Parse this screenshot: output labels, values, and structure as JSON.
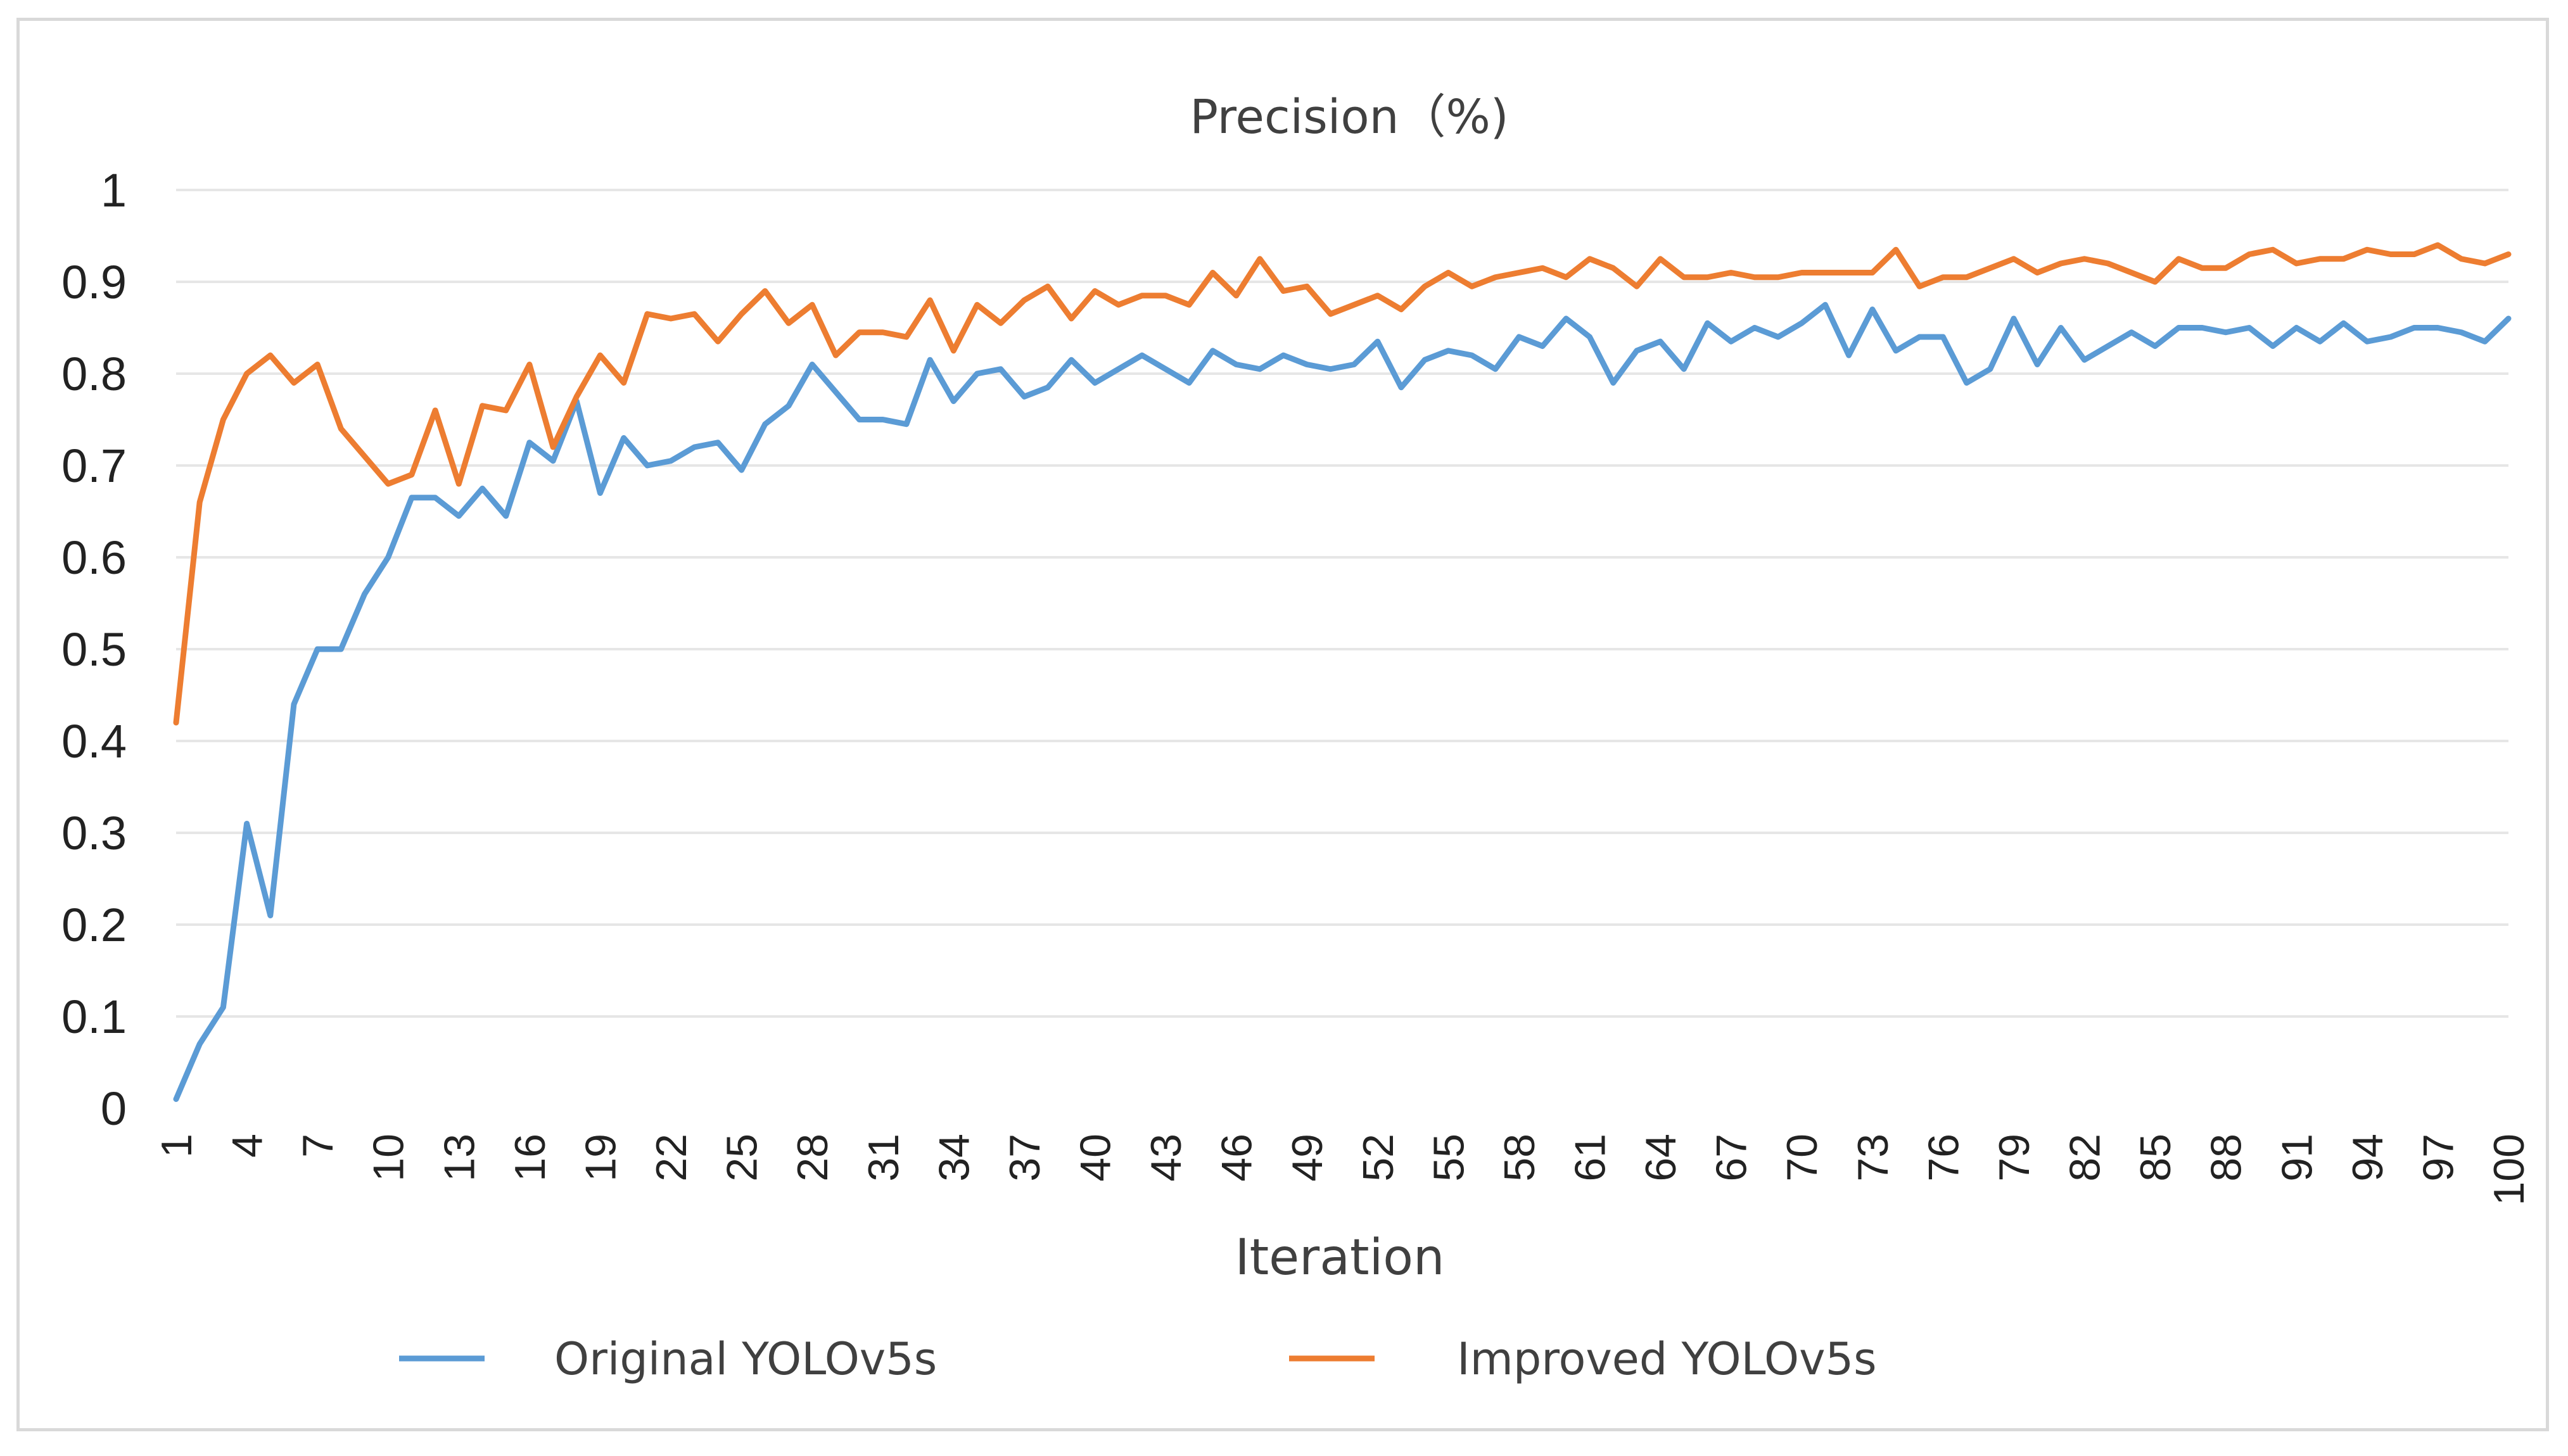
{
  "chart_data": {
    "type": "line",
    "title": "Precision（%)",
    "xlabel": "Iteration",
    "ylabel": "",
    "ylim": [
      0,
      1
    ],
    "yticks": [
      "0",
      "0.1",
      "0.2",
      "0.3",
      "0.4",
      "0.5",
      "0.6",
      "0.7",
      "0.8",
      "0.9",
      "1"
    ],
    "xticks": [
      "1",
      "4",
      "7",
      "10",
      "13",
      "16",
      "19",
      "22",
      "25",
      "28",
      "31",
      "34",
      "37",
      "40",
      "43",
      "46",
      "49",
      "52",
      "55",
      "58",
      "61",
      "64",
      "67",
      "70",
      "73",
      "76",
      "79",
      "82",
      "85",
      "88",
      "91",
      "94",
      "97",
      "100"
    ],
    "grid": true,
    "legend_position": "bottom",
    "x": [
      1,
      2,
      3,
      4,
      5,
      6,
      7,
      8,
      9,
      10,
      11,
      12,
      13,
      14,
      15,
      16,
      17,
      18,
      19,
      20,
      21,
      22,
      23,
      24,
      25,
      26,
      27,
      28,
      29,
      30,
      31,
      32,
      33,
      34,
      35,
      36,
      37,
      38,
      39,
      40,
      41,
      42,
      43,
      44,
      45,
      46,
      47,
      48,
      49,
      50,
      51,
      52,
      53,
      54,
      55,
      56,
      57,
      58,
      59,
      60,
      61,
      62,
      63,
      64,
      65,
      66,
      67,
      68,
      69,
      70,
      71,
      72,
      73,
      74,
      75,
      76,
      77,
      78,
      79,
      80,
      81,
      82,
      83,
      84,
      85,
      86,
      87,
      88,
      89,
      90,
      91,
      92,
      93,
      94,
      95,
      96,
      97,
      98,
      99,
      100
    ],
    "series": [
      {
        "name": "Original YOLOv5s",
        "color": "#5b9bd5",
        "values": [
          0.01,
          0.07,
          0.11,
          0.31,
          0.21,
          0.44,
          0.5,
          0.5,
          0.56,
          0.6,
          0.665,
          0.665,
          0.645,
          0.675,
          0.645,
          0.725,
          0.705,
          0.77,
          0.67,
          0.73,
          0.7,
          0.705,
          0.72,
          0.725,
          0.695,
          0.745,
          0.765,
          0.81,
          0.78,
          0.75,
          0.75,
          0.745,
          0.815,
          0.77,
          0.8,
          0.805,
          0.775,
          0.785,
          0.815,
          0.79,
          0.805,
          0.82,
          0.805,
          0.79,
          0.825,
          0.81,
          0.805,
          0.82,
          0.81,
          0.805,
          0.81,
          0.835,
          0.785,
          0.815,
          0.825,
          0.82,
          0.805,
          0.84,
          0.83,
          0.86,
          0.84,
          0.79,
          0.825,
          0.835,
          0.805,
          0.855,
          0.835,
          0.85,
          0.84,
          0.855,
          0.875,
          0.82,
          0.87,
          0.825,
          0.84,
          0.84,
          0.79,
          0.805,
          0.86,
          0.81,
          0.85,
          0.815,
          0.83,
          0.845,
          0.83,
          0.85,
          0.85,
          0.845,
          0.85,
          0.83,
          0.85,
          0.835,
          0.855,
          0.835,
          0.84,
          0.85,
          0.85,
          0.845,
          0.835,
          0.86
        ]
      },
      {
        "name": "Improved YOLOv5s",
        "color": "#ed7d31",
        "values": [
          0.42,
          0.66,
          0.75,
          0.8,
          0.82,
          0.79,
          0.81,
          0.74,
          0.71,
          0.68,
          0.69,
          0.76,
          0.68,
          0.765,
          0.76,
          0.81,
          0.72,
          0.775,
          0.82,
          0.79,
          0.865,
          0.86,
          0.865,
          0.835,
          0.865,
          0.89,
          0.855,
          0.875,
          0.82,
          0.845,
          0.845,
          0.84,
          0.88,
          0.825,
          0.875,
          0.855,
          0.88,
          0.895,
          0.86,
          0.89,
          0.875,
          0.885,
          0.885,
          0.875,
          0.91,
          0.885,
          0.925,
          0.89,
          0.895,
          0.865,
          0.875,
          0.885,
          0.87,
          0.895,
          0.91,
          0.895,
          0.905,
          0.91,
          0.915,
          0.905,
          0.925,
          0.915,
          0.895,
          0.925,
          0.905,
          0.905,
          0.91,
          0.905,
          0.905,
          0.91,
          0.91,
          0.91,
          0.91,
          0.935,
          0.895,
          0.905,
          0.905,
          0.915,
          0.925,
          0.91,
          0.92,
          0.925,
          0.92,
          0.91,
          0.9,
          0.925,
          0.915,
          0.915,
          0.93,
          0.935,
          0.92,
          0.925,
          0.925,
          0.935,
          0.93,
          0.93,
          0.94,
          0.925,
          0.92,
          0.93
        ]
      }
    ]
  }
}
